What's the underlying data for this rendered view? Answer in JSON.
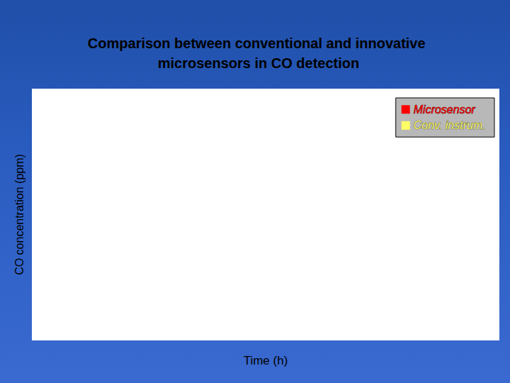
{
  "chart_data": {
    "type": "line",
    "title": "Comparison between conventional and innovative microsensors in CO detection",
    "xlabel": "Time (h)",
    "ylabel": "CO concentration (ppm)",
    "series": [
      {
        "name": "Microsensor",
        "color": "#ff0000",
        "values": []
      },
      {
        "name": "Conv. instrum.",
        "color": "#ffff66",
        "values": []
      }
    ],
    "legend": "top-right",
    "grid": false,
    "tick_labels": false
  }
}
